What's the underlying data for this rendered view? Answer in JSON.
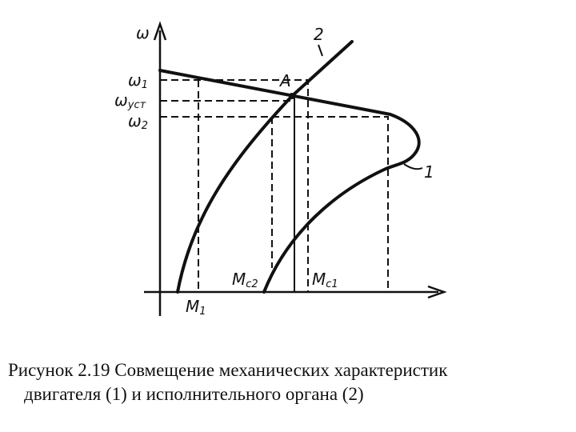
{
  "figure": {
    "labels": {
      "omega": "ω",
      "omega1": {
        "base": "ω",
        "sub": "1"
      },
      "omega_ust": {
        "base": "ω",
        "sub": "уст"
      },
      "omega2": {
        "base": "ω",
        "sub": "2"
      },
      "point_a": "A",
      "curve2": "2",
      "curve1": "1",
      "m1": {
        "base": "M",
        "sub": "1"
      },
      "mc2": {
        "base": "M",
        "sub": "c2"
      },
      "mc1": {
        "base": "M",
        "sub": "c1"
      }
    },
    "caption": [
      "Рисунок 2.19  Совмещение механических характеристик",
      "двигателя (1) и исполнительного органа (2)"
    ]
  }
}
